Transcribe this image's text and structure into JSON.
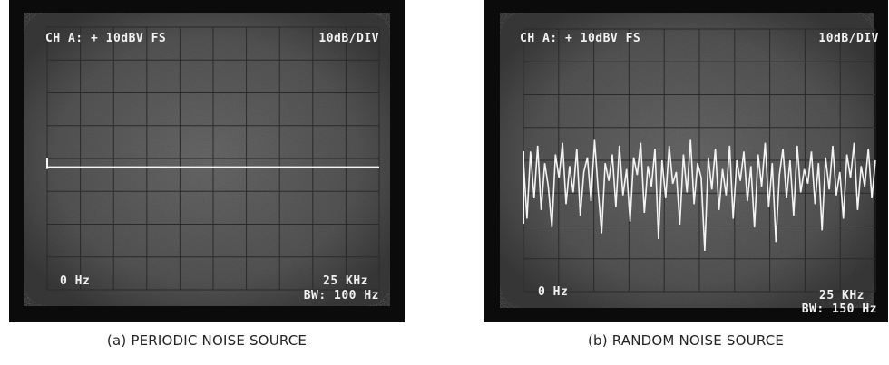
{
  "colors": {
    "bezel": "#0b0b0b",
    "screen": "#5a5a5a",
    "grid": "#2a2a2a",
    "trace": "#f4f4f4",
    "caption_text": "#222222"
  },
  "panels": [
    {
      "caption": "(a) PERIODIC NOISE SOURCE",
      "header_left": "CH A: + 10dBV  FS",
      "header_right": "10dB/DIV",
      "footer_left": "0 Hz",
      "footer_right_1": "25 KHz",
      "footer_right_2": "BW: 100 Hz"
    },
    {
      "caption": "(b) RANDOM NOISE SOURCE",
      "header_left": "CH A: + 10dBV  FS",
      "header_right": "10dB/DIV",
      "footer_left": "0 Hz",
      "footer_right_1": "25 KHz",
      "footer_right_2": "BW: 150 Hz"
    }
  ],
  "chart_data": [
    {
      "type": "line",
      "series": [
        {
          "values": [
            -38,
            -38
          ]
        }
      ],
      "x": [
        0,
        25000
      ],
      "xlim": [
        0,
        25000
      ],
      "ylim": [
        -80,
        10
      ],
      "grid": true,
      "note_trace": "flat"
    },
    {
      "type": "line",
      "series": [
        {
          "values": [
            -35,
            -55,
            -32,
            -48,
            -30,
            -52,
            -36,
            -44,
            -58,
            -33,
            -41,
            -29,
            -50,
            -37,
            -46,
            -31,
            -54,
            -39,
            -34,
            -49,
            -28,
            -45,
            -60,
            -36,
            -42,
            -33,
            -51,
            -30,
            -47,
            -38,
            -56,
            -34,
            -40,
            -29,
            -53,
            -37,
            -44,
            -31,
            -62,
            -35,
            -48,
            -30,
            -43,
            -39,
            -57,
            -33,
            -46,
            -28,
            -50,
            -36,
            -41,
            -66,
            -34,
            -45,
            -31,
            -52,
            -38,
            -47,
            -30,
            -55,
            -35,
            -42,
            -32,
            -49,
            -37,
            -58,
            -33,
            -44,
            -29,
            -51,
            -36,
            -63,
            -40,
            -31,
            -48,
            -35,
            -54,
            -30,
            -46,
            -38,
            -43,
            -32,
            -50,
            -36,
            -59,
            -34,
            -45,
            -30,
            -47,
            -39,
            -55,
            -33,
            -41,
            -29,
            -52,
            -37,
            -44,
            -31,
            -48,
            -35
          ]
        }
      ],
      "xlim": [
        0,
        25000
      ],
      "ylim": [
        -80,
        10
      ],
      "grid": true
    }
  ]
}
